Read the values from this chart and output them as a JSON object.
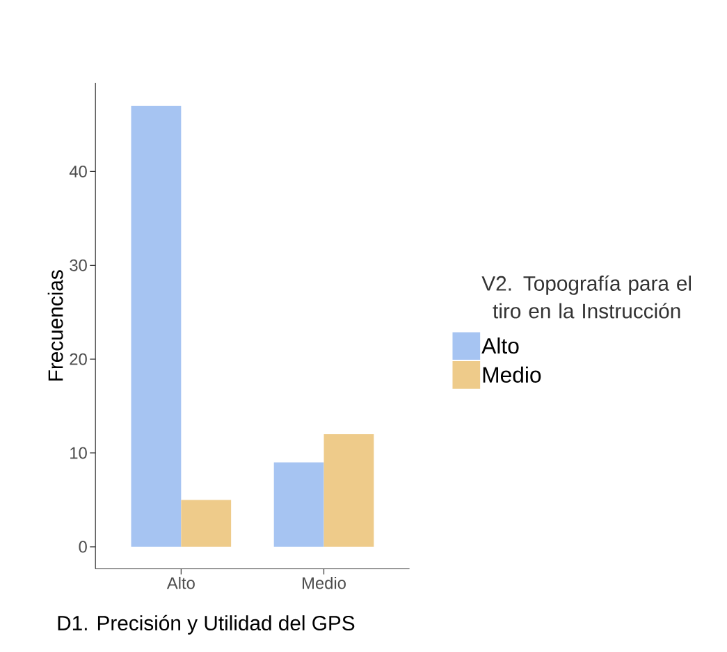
{
  "chart_data": {
    "type": "bar",
    "xlabel": "D1. Precisión y Utilidad del GPS",
    "ylabel": "Frecuencias",
    "legend_title": "V2. Topografía para el tiro en la Instrucción",
    "categories": [
      "Alto",
      "Medio"
    ],
    "series": [
      {
        "name": "Alto",
        "color": "#a6c4f2",
        "values": [
          47,
          9
        ]
      },
      {
        "name": "Medio",
        "color": "#eecb8a",
        "values": [
          5,
          12
        ]
      }
    ],
    "ylim": [
      -2.35,
      49.45
    ],
    "yticks": [
      0,
      10,
      20,
      30,
      40
    ],
    "legend": "right"
  }
}
